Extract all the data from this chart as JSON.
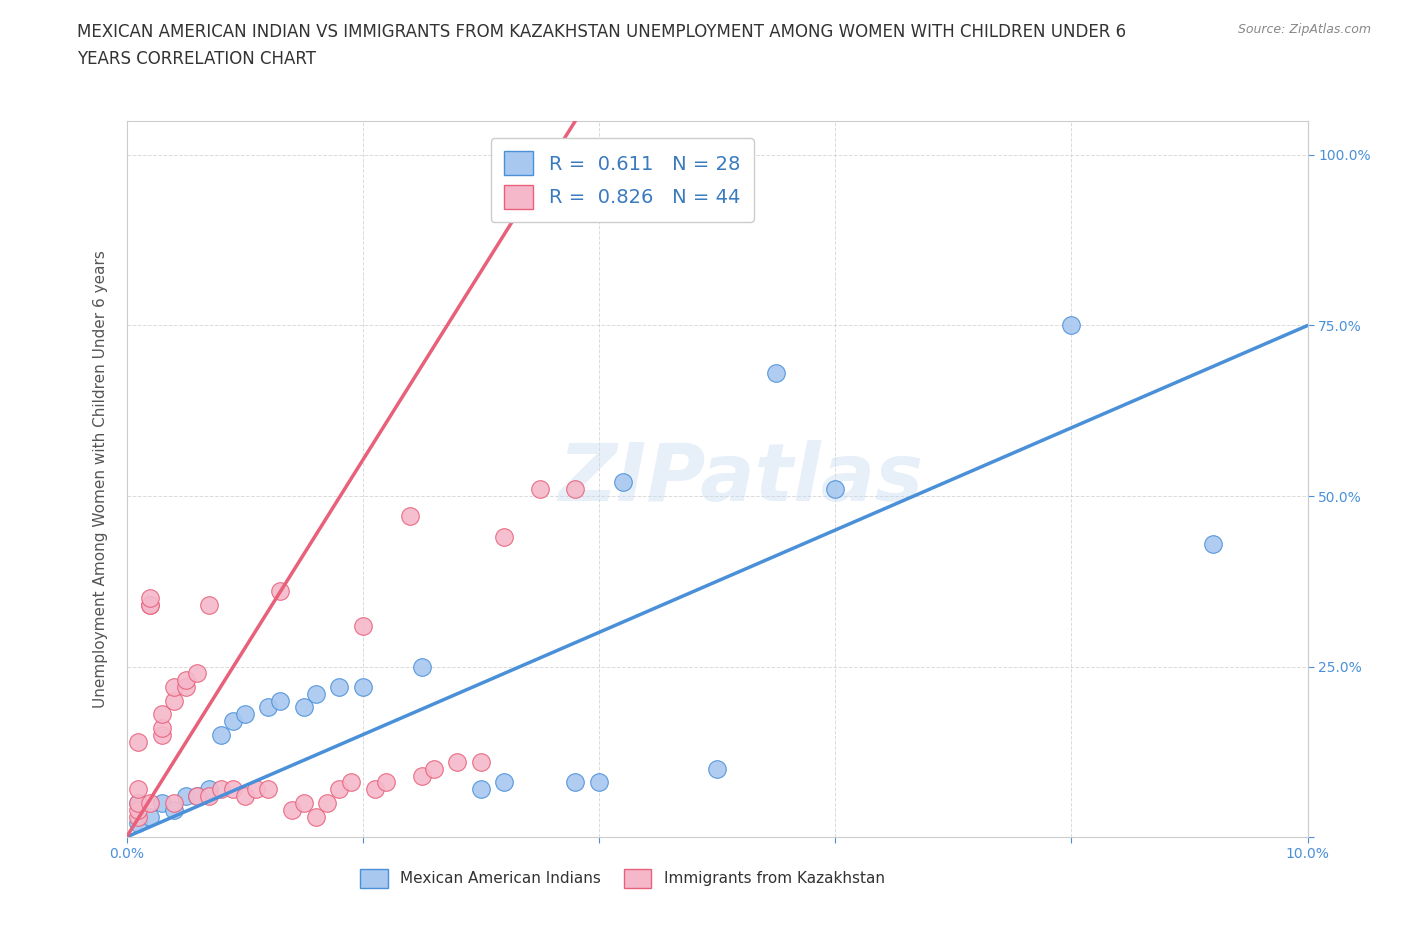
{
  "title": "MEXICAN AMERICAN INDIAN VS IMMIGRANTS FROM KAZAKHSTAN UNEMPLOYMENT AMONG WOMEN WITH CHILDREN UNDER 6\nYEARS CORRELATION CHART",
  "source": "Source: ZipAtlas.com",
  "ylabel": "Unemployment Among Women with Children Under 6 years",
  "xlim": [
    0,
    0.1
  ],
  "ylim": [
    0,
    1.05
  ],
  "xticks": [
    0.0,
    0.02,
    0.04,
    0.06,
    0.08,
    0.1
  ],
  "xtick_labels": [
    "0.0%",
    "",
    "",
    "",
    "",
    "10.0%"
  ],
  "yticks": [
    0.0,
    0.25,
    0.5,
    0.75,
    1.0
  ],
  "ytick_labels_right": [
    "",
    "25.0%",
    "50.0%",
    "75.0%",
    "100.0%"
  ],
  "blue_color": "#a8c8f0",
  "pink_color": "#f5b8ca",
  "blue_line_color": "#4a90d9",
  "pink_line_color": "#e8607a",
  "watermark": "ZIPatlas",
  "legend_R_blue": "0.611",
  "legend_N_blue": "28",
  "legend_R_pink": "0.826",
  "legend_N_pink": "44",
  "blue_points_x": [
    0.001,
    0.001,
    0.002,
    0.003,
    0.004,
    0.005,
    0.006,
    0.007,
    0.008,
    0.009,
    0.01,
    0.012,
    0.013,
    0.015,
    0.016,
    0.018,
    0.02,
    0.025,
    0.03,
    0.032,
    0.038,
    0.04,
    0.042,
    0.05,
    0.055,
    0.06,
    0.08,
    0.092
  ],
  "blue_points_y": [
    0.02,
    0.05,
    0.03,
    0.05,
    0.04,
    0.06,
    0.06,
    0.07,
    0.15,
    0.17,
    0.18,
    0.19,
    0.2,
    0.19,
    0.21,
    0.22,
    0.22,
    0.25,
    0.07,
    0.08,
    0.08,
    0.08,
    0.52,
    0.1,
    0.68,
    0.51,
    0.75,
    0.43
  ],
  "pink_points_x": [
    0.001,
    0.001,
    0.001,
    0.001,
    0.001,
    0.002,
    0.002,
    0.002,
    0.002,
    0.003,
    0.003,
    0.003,
    0.004,
    0.004,
    0.004,
    0.005,
    0.005,
    0.006,
    0.006,
    0.007,
    0.007,
    0.008,
    0.009,
    0.01,
    0.011,
    0.012,
    0.013,
    0.014,
    0.015,
    0.016,
    0.017,
    0.018,
    0.019,
    0.02,
    0.021,
    0.022,
    0.024,
    0.025,
    0.026,
    0.028,
    0.03,
    0.032,
    0.035,
    0.038
  ],
  "pink_points_y": [
    0.03,
    0.04,
    0.05,
    0.07,
    0.14,
    0.34,
    0.34,
    0.35,
    0.05,
    0.15,
    0.16,
    0.18,
    0.2,
    0.22,
    0.05,
    0.22,
    0.23,
    0.24,
    0.06,
    0.34,
    0.06,
    0.07,
    0.07,
    0.06,
    0.07,
    0.07,
    0.36,
    0.04,
    0.05,
    0.03,
    0.05,
    0.07,
    0.08,
    0.31,
    0.07,
    0.08,
    0.47,
    0.09,
    0.1,
    0.11,
    0.11,
    0.44,
    0.51,
    0.51
  ],
  "blue_line_x": [
    0.0,
    0.1
  ],
  "blue_line_y": [
    0.0,
    0.75
  ],
  "pink_line_x": [
    0.0,
    0.038
  ],
  "pink_line_y": [
    0.0,
    1.05
  ],
  "grid_color": "#cccccc",
  "background_color": "#ffffff",
  "title_fontsize": 12,
  "axis_label_fontsize": 11,
  "tick_fontsize": 10,
  "source_fontsize": 9
}
